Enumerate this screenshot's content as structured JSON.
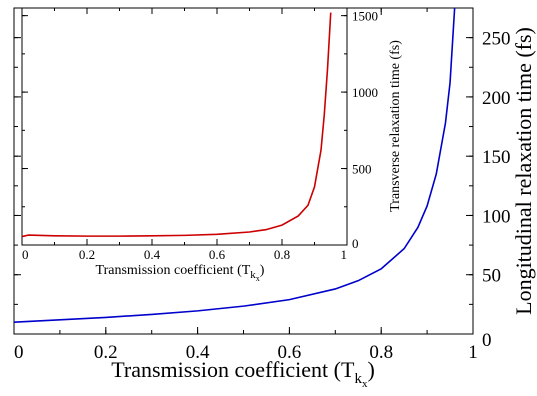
{
  "chart_data": [
    {
      "id": "main",
      "type": "line",
      "xlabel": "Transmission coefficient (T",
      "xlabel_sub": "k",
      "xlabel_subsub": "x",
      "xlabel_close": ")",
      "ylabel": "Longitudinal relaxation time (fs)",
      "xlim": [
        0,
        1
      ],
      "ylim": [
        0,
        275
      ],
      "y_axis_side": "right",
      "x_ticks": [
        0,
        0.2,
        0.4,
        0.6,
        0.8,
        1
      ],
      "x_tick_labels": [
        "0",
        "0.2",
        "0.4",
        "0.6",
        "0.8",
        "1"
      ],
      "y_ticks": [
        0,
        50,
        100,
        150,
        200,
        250
      ],
      "y_tick_labels": [
        "0",
        "50",
        "100",
        "150",
        "200",
        "250"
      ],
      "grid": false,
      "series": [
        {
          "color": "#0000cc",
          "x": [
            0.0,
            0.1,
            0.2,
            0.3,
            0.4,
            0.5,
            0.6,
            0.7,
            0.75,
            0.8,
            0.85,
            0.88,
            0.9,
            0.92,
            0.94,
            0.95,
            0.96
          ],
          "y": [
            10,
            12,
            14,
            16.5,
            19.5,
            23.5,
            29,
            38,
            45,
            55,
            72,
            90,
            108,
            135,
            178,
            212,
            275
          ]
        }
      ]
    },
    {
      "id": "inset",
      "type": "line",
      "xlabel": "Transmission coefficient (T",
      "xlabel_sub": "k",
      "xlabel_subsub": "x",
      "xlabel_close": ")",
      "ylabel": "Transverse relaxation time (fs)",
      "xlim": [
        0,
        1
      ],
      "ylim": [
        0,
        1550
      ],
      "y_axis_side": "right",
      "x_ticks": [
        0,
        0.2,
        0.4,
        0.6,
        0.8,
        1
      ],
      "x_tick_labels": [
        "0",
        "0.2",
        "0.4",
        "0.6",
        "0.8",
        "1"
      ],
      "y_ticks": [
        0,
        500,
        1000,
        1500
      ],
      "y_tick_labels": [
        "0",
        "500",
        "1000",
        "1500"
      ],
      "grid": false,
      "series": [
        {
          "color": "#cc0000",
          "x": [
            0.0,
            0.02,
            0.1,
            0.2,
            0.3,
            0.4,
            0.5,
            0.6,
            0.7,
            0.75,
            0.8,
            0.85,
            0.88,
            0.9,
            0.92,
            0.93,
            0.94,
            0.95
          ],
          "y": [
            55,
            65,
            60,
            58,
            58,
            60,
            63,
            70,
            85,
            100,
            130,
            190,
            260,
            380,
            620,
            850,
            1150,
            1520
          ]
        }
      ]
    }
  ]
}
